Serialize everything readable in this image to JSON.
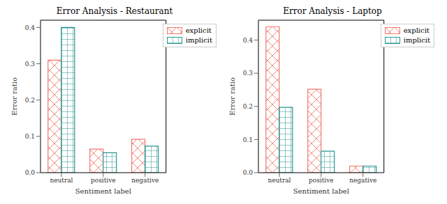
{
  "chart_data": [
    {
      "type": "bar",
      "title": "Error Analysis - Restaurant",
      "x_label": "Sentiment label",
      "y_label": "Error ratio",
      "categories": [
        "neutral",
        "positive",
        "negative"
      ],
      "series": [
        {
          "name": "explicit",
          "color": "#f0796c",
          "values": [
            0.31,
            0.065,
            0.092
          ]
        },
        {
          "name": "implicit",
          "color": "#2a9690",
          "values": [
            0.4,
            0.055,
            0.073
          ]
        }
      ],
      "ylim": [
        0,
        0.42
      ],
      "yticks": [
        {
          "value": 0,
          "label": "0.0"
        },
        0.1,
        0.2,
        0.3,
        0.4
      ],
      "legend": "upper right",
      "grid": false
    },
    {
      "type": "bar",
      "title": "Error Analysis - Laptop",
      "x_label": "Sentiment label",
      "y_label": "Error ratio",
      "categories": [
        "neutral",
        "positive",
        "negative"
      ],
      "series": [
        {
          "name": "explicit",
          "color": "#f0796c",
          "values": [
            0.44,
            0.252,
            0.02
          ]
        },
        {
          "name": "implicit",
          "color": "#2a9690",
          "values": [
            0.197,
            0.065,
            0.02
          ]
        }
      ],
      "ylim": [
        0,
        0.46
      ],
      "yticks": [
        {
          "value": 0,
          "label": "0.0"
        },
        0.1,
        0.2,
        0.3,
        0.4
      ],
      "legend": "upper right",
      "grid": false
    }
  ]
}
